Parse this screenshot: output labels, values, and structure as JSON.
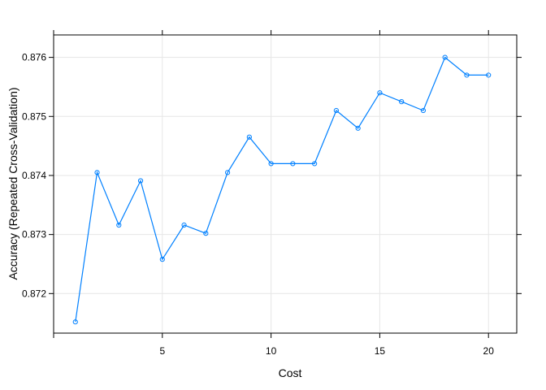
{
  "chart_data": {
    "type": "line",
    "xlabel": "Cost",
    "ylabel": "Accuracy (Repeated Cross-Validation)",
    "xlim": [
      0,
      21.3
    ],
    "ylim": [
      0.87133,
      0.87638
    ],
    "xticks": [
      5,
      10,
      15,
      20
    ],
    "xtick_labels": [
      "5",
      "10",
      "15",
      "20"
    ],
    "xticks_minor": [
      0
    ],
    "yticks": [
      0.872,
      0.873,
      0.874,
      0.875,
      0.876
    ],
    "ytick_labels": [
      "0.872",
      "0.873",
      "0.874",
      "0.875",
      "0.876"
    ],
    "grid": true,
    "color": "#0080ff",
    "series": [
      {
        "x": [
          1,
          2,
          3,
          4,
          5,
          6,
          7,
          8,
          9,
          10,
          11,
          12,
          13,
          14,
          15,
          16,
          17,
          18,
          19,
          20
        ],
        "values": [
          0.87152,
          0.87405,
          0.87316,
          0.87391,
          0.87258,
          0.87316,
          0.87302,
          0.87405,
          0.87465,
          0.8742,
          0.8742,
          0.8742,
          0.8751,
          0.8748,
          0.8754,
          0.87525,
          0.8751,
          0.876,
          0.8757,
          0.8757
        ]
      }
    ]
  }
}
